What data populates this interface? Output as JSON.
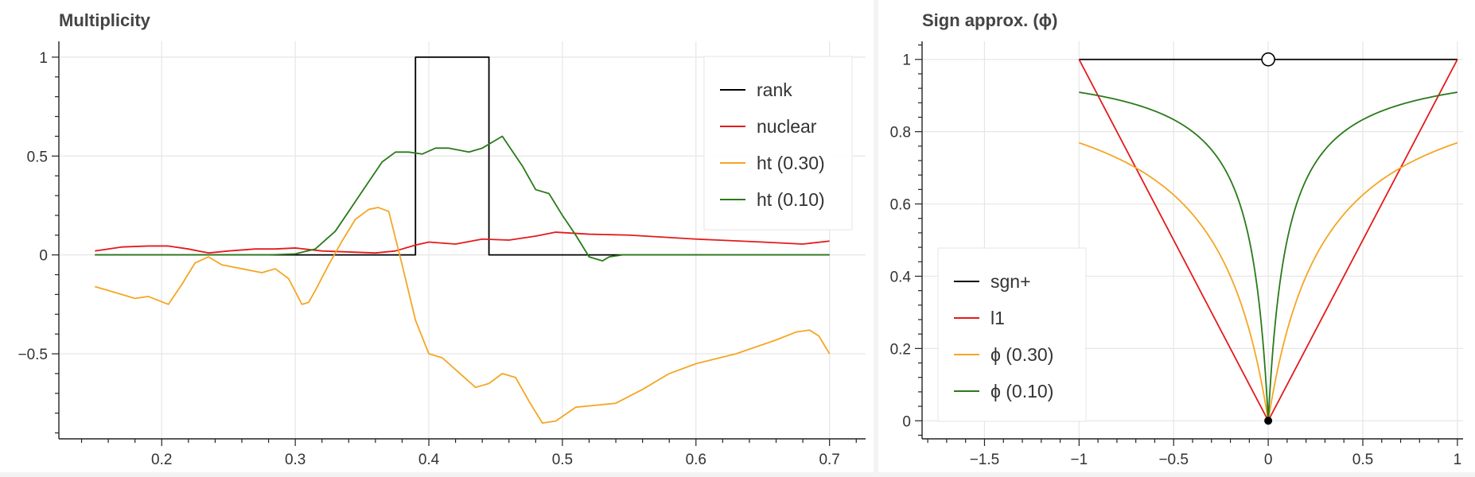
{
  "chart_data": [
    {
      "type": "line",
      "title": "Multiplicity",
      "xlim": [
        0.123,
        0.727
      ],
      "ylim": [
        -0.93,
        1.08
      ],
      "x_ticks": [
        0.2,
        0.3,
        0.4,
        0.5,
        0.6,
        0.7
      ],
      "x_tick_labels": [
        "0.2",
        "0.3",
        "0.4",
        "0.5",
        "0.6",
        "0.7"
      ],
      "y_ticks": [
        1,
        0.5,
        0,
        -0.5
      ],
      "y_tick_labels": [
        "1",
        "0.5",
        "0",
        "−0.5"
      ],
      "grid": true,
      "legend_position": "top-right",
      "series": [
        {
          "name": "rank",
          "color": "#000000",
          "x": [
            0.15,
            0.39,
            0.39,
            0.445,
            0.445,
            0.7
          ],
          "y": [
            0,
            0,
            1,
            1,
            0,
            0
          ]
        },
        {
          "name": "nuclear",
          "color": "#e41a1c",
          "x": [
            0.15,
            0.17,
            0.19,
            0.205,
            0.22,
            0.235,
            0.25,
            0.27,
            0.285,
            0.3,
            0.32,
            0.34,
            0.36,
            0.375,
            0.39,
            0.4,
            0.42,
            0.44,
            0.46,
            0.48,
            0.495,
            0.52,
            0.55,
            0.6,
            0.65,
            0.68,
            0.7
          ],
          "y": [
            0.02,
            0.04,
            0.045,
            0.045,
            0.03,
            0.01,
            0.02,
            0.03,
            0.03,
            0.035,
            0.02,
            0.015,
            0.01,
            0.02,
            0.05,
            0.065,
            0.055,
            0.08,
            0.075,
            0.095,
            0.115,
            0.105,
            0.1,
            0.08,
            0.065,
            0.055,
            0.07
          ]
        },
        {
          "name": "ht (0.30)",
          "color": "#f5a623",
          "x": [
            0.15,
            0.165,
            0.18,
            0.19,
            0.205,
            0.215,
            0.225,
            0.235,
            0.245,
            0.26,
            0.275,
            0.285,
            0.295,
            0.305,
            0.31,
            0.315,
            0.325,
            0.335,
            0.345,
            0.355,
            0.362,
            0.37,
            0.38,
            0.39,
            0.4,
            0.41,
            0.42,
            0.435,
            0.445,
            0.455,
            0.465,
            0.475,
            0.485,
            0.495,
            0.51,
            0.525,
            0.54,
            0.56,
            0.58,
            0.6,
            0.63,
            0.66,
            0.675,
            0.685,
            0.692,
            0.7
          ],
          "y": [
            -0.16,
            -0.19,
            -0.22,
            -0.21,
            -0.25,
            -0.15,
            -0.04,
            -0.01,
            -0.05,
            -0.07,
            -0.09,
            -0.07,
            -0.12,
            -0.25,
            -0.24,
            -0.18,
            -0.05,
            0.07,
            0.18,
            0.23,
            0.24,
            0.22,
            -0.05,
            -0.33,
            -0.5,
            -0.52,
            -0.58,
            -0.67,
            -0.65,
            -0.6,
            -0.62,
            -0.74,
            -0.85,
            -0.84,
            -0.77,
            -0.76,
            -0.75,
            -0.68,
            -0.6,
            -0.55,
            -0.5,
            -0.43,
            -0.39,
            -0.38,
            -0.41,
            -0.5
          ]
        },
        {
          "name": "ht (0.10)",
          "color": "#2a7a1a",
          "x": [
            0.15,
            0.28,
            0.3,
            0.315,
            0.33,
            0.35,
            0.365,
            0.375,
            0.385,
            0.395,
            0.405,
            0.415,
            0.43,
            0.44,
            0.45,
            0.455,
            0.46,
            0.47,
            0.48,
            0.49,
            0.5,
            0.51,
            0.52,
            0.53,
            0.535,
            0.545,
            0.6,
            0.7
          ],
          "y": [
            0,
            0,
            0.005,
            0.03,
            0.12,
            0.32,
            0.47,
            0.52,
            0.52,
            0.51,
            0.54,
            0.54,
            0.52,
            0.54,
            0.58,
            0.6,
            0.55,
            0.45,
            0.33,
            0.31,
            0.2,
            0.1,
            -0.01,
            -0.03,
            -0.01,
            0,
            0,
            0
          ]
        }
      ]
    },
    {
      "type": "line",
      "title": "Sign approx. (ϕ)",
      "xlim": [
        -1.83,
        1.03
      ],
      "ylim": [
        -0.05,
        1.05
      ],
      "x_ticks": [
        -1.5,
        -1,
        -0.5,
        0,
        0.5,
        1
      ],
      "x_tick_labels": [
        "−1.5",
        "−1",
        "−0.5",
        "0",
        "0.5",
        "1"
      ],
      "y_ticks": [
        1,
        0.8,
        0.6,
        0.4,
        0.2,
        0
      ],
      "y_tick_labels": [
        "1",
        "0.8",
        "0.6",
        "0.4",
        "0.2",
        "0"
      ],
      "grid": true,
      "legend_position": "bottom-left",
      "markers": [
        {
          "name": "open-circle",
          "x": 0,
          "y": 1
        },
        {
          "name": "filled-dot",
          "x": 0,
          "y": 0
        }
      ],
      "series": [
        {
          "name": "sgn+",
          "color": "#000000",
          "x": [
            -1,
            1
          ],
          "y": [
            1,
            1
          ]
        },
        {
          "name": "l1",
          "color": "#e41a1c",
          "x": [
            -1,
            0,
            1
          ],
          "y": [
            1,
            0,
            1
          ]
        },
        {
          "name": "ϕ (0.30)",
          "color": "#f5a623",
          "function": "|x|/(|x|+0.30)",
          "x_range": [
            -1,
            1
          ]
        },
        {
          "name": "ϕ (0.10)",
          "color": "#2a7a1a",
          "function": "|x|/(|x|+0.10)",
          "x_range": [
            -1,
            1
          ]
        }
      ]
    }
  ]
}
